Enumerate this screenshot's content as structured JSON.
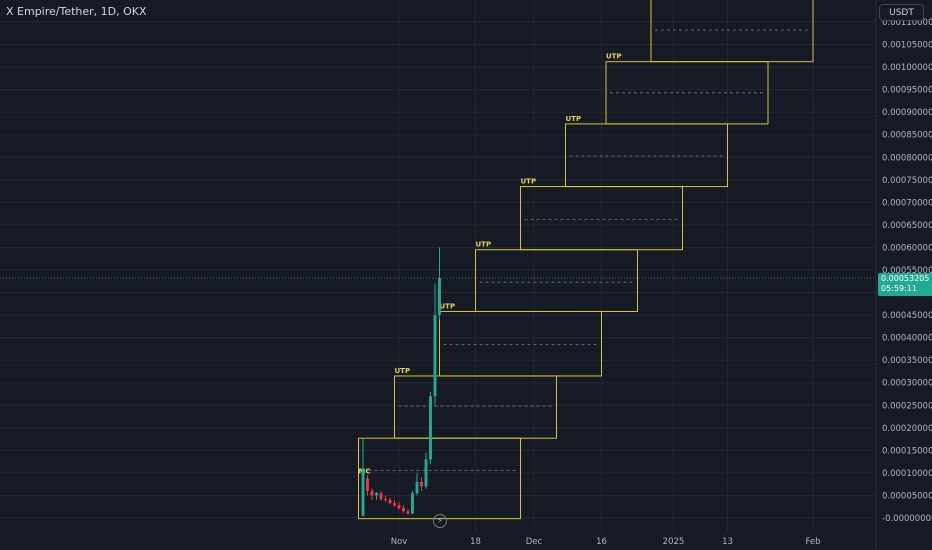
{
  "header": {
    "symbol_title": "X Empire/Tether, 1D, OKX",
    "currency_button": "USDT"
  },
  "price_tag": {
    "price": "0.00053205",
    "countdown": "05:59:11"
  },
  "colors": {
    "background": "#161a25",
    "grid": "#232733",
    "text": "#b2b5be",
    "up_candle": "#22ab94",
    "down_candle": "#f23645",
    "box_outline": "#d5c338",
    "midline": "#787b86",
    "price_line": "#22ab94"
  },
  "chart_data": {
    "type": "candlestick",
    "title": "X Empire/Tether, 1D, OKX",
    "xlabel": "",
    "ylabel": "",
    "ylim": [
      -0.0,
      0.00113
    ],
    "xlim": [
      "2024-10-24",
      "2025-02-05"
    ],
    "y_ticks": [
      "-0.00000000",
      "0.00005000",
      "0.00010000",
      "0.00015000",
      "0.00020000",
      "0.00025000",
      "0.00030000",
      "0.00035000",
      "0.00040000",
      "0.00045000",
      "0.00050000",
      "0.00055000",
      "0.00060000",
      "0.00065000",
      "0.00070000",
      "0.00075000",
      "0.00080000",
      "0.00085000",
      "0.00090000",
      "0.00095000",
      "0.00100000",
      "0.00105000",
      "0.00110000"
    ],
    "x_ticks": [
      {
        "label": "Nov",
        "date": "2024-11-01"
      },
      {
        "label": "18",
        "date": "2024-11-18"
      },
      {
        "label": "Dec",
        "date": "2024-12-01"
      },
      {
        "label": "16",
        "date": "2024-12-16"
      },
      {
        "label": "2025",
        "date": "2025-01-01"
      },
      {
        "label": "13",
        "date": "2025-01-13"
      },
      {
        "label": "Feb",
        "date": "2025-02-01"
      }
    ],
    "grid": true,
    "current_price": 0.00053205,
    "candles": [
      {
        "date": "2024-10-24",
        "open": 5e-06,
        "high": 0.000175,
        "low": 3e-06,
        "close": 0.00011
      },
      {
        "date": "2024-10-25",
        "open": 8.8e-05,
        "high": 9.5e-05,
        "low": 5e-05,
        "close": 6e-05
      },
      {
        "date": "2024-10-26",
        "open": 6e-05,
        "high": 6.6e-05,
        "low": 4e-05,
        "close": 5e-05
      },
      {
        "date": "2024-10-27",
        "open": 5e-05,
        "high": 5.8e-05,
        "low": 4e-05,
        "close": 5.5e-05
      },
      {
        "date": "2024-10-28",
        "open": 5.5e-05,
        "high": 6e-05,
        "low": 3.8e-05,
        "close": 4.2e-05
      },
      {
        "date": "2024-10-29",
        "open": 4.2e-05,
        "high": 5e-05,
        "low": 3.5e-05,
        "close": 4e-05
      },
      {
        "date": "2024-10-30",
        "open": 4e-05,
        "high": 4.5e-05,
        "low": 3e-05,
        "close": 3.3e-05
      },
      {
        "date": "2024-10-31",
        "open": 3.3e-05,
        "high": 4e-05,
        "low": 2.5e-05,
        "close": 2.8e-05
      },
      {
        "date": "2024-11-01",
        "open": 2.8e-05,
        "high": 3.5e-05,
        "low": 1.8e-05,
        "close": 2.2e-05
      },
      {
        "date": "2024-11-02",
        "open": 2.2e-05,
        "high": 2.8e-05,
        "low": 1.2e-05,
        "close": 1.5e-05
      },
      {
        "date": "2024-11-03",
        "open": 1.5e-05,
        "high": 2e-05,
        "low": 8e-06,
        "close": 1e-05
      },
      {
        "date": "2024-11-04",
        "open": 1e-05,
        "high": 6e-05,
        "low": 8e-06,
        "close": 5.5e-05
      },
      {
        "date": "2024-11-05",
        "open": 5.5e-05,
        "high": 0.0001,
        "low": 5e-05,
        "close": 8e-05
      },
      {
        "date": "2024-11-06",
        "open": 8e-05,
        "high": 9e-05,
        "low": 6e-05,
        "close": 7e-05
      },
      {
        "date": "2024-11-07",
        "open": 7e-05,
        "high": 0.000145,
        "low": 6.5e-05,
        "close": 0.00013
      },
      {
        "date": "2024-11-08",
        "open": 0.00013,
        "high": 0.00028,
        "low": 0.00012,
        "close": 0.00027
      },
      {
        "date": "2024-11-09",
        "open": 0.00027,
        "high": 0.00052,
        "low": 0.00025,
        "close": 0.00045
      },
      {
        "date": "2024-11-10",
        "open": 0.00045,
        "high": 0.0006,
        "low": 0.00044,
        "close": 0.00053205
      }
    ],
    "boxes": [
      {
        "label": "MC",
        "start": "2024-10-23",
        "end": "2024-11-28",
        "low": -1.5e-06,
        "high": 0.000177,
        "mid": 0.000105
      },
      {
        "label": "UTP",
        "start": "2024-10-31",
        "end": "2024-12-06",
        "low": 0.000177,
        "high": 0.000315,
        "mid": 0.000248
      },
      {
        "label": "UTP",
        "start": "2024-11-10",
        "end": "2024-12-16",
        "low": 0.000315,
        "high": 0.000458,
        "mid": 0.000385
      },
      {
        "label": "UTP",
        "start": "2024-11-18",
        "end": "2024-12-24",
        "low": 0.000458,
        "high": 0.000595,
        "mid": 0.000523
      },
      {
        "label": "UTP",
        "start": "2024-11-28",
        "end": "2025-01-03",
        "low": 0.000595,
        "high": 0.000735,
        "mid": 0.000662
      },
      {
        "label": "UTP",
        "start": "2024-12-08",
        "end": "2025-01-13",
        "low": 0.000735,
        "high": 0.000874,
        "mid": 0.000803
      },
      {
        "label": "UTP",
        "start": "2024-12-17",
        "end": "2025-01-22",
        "low": 0.000874,
        "high": 0.001012,
        "mid": 0.000943
      },
      {
        "label": "",
        "start": "2024-12-27",
        "end": "2025-02-01",
        "low": 0.001012,
        "high": 0.00115,
        "mid": 0.001082
      }
    ]
  }
}
